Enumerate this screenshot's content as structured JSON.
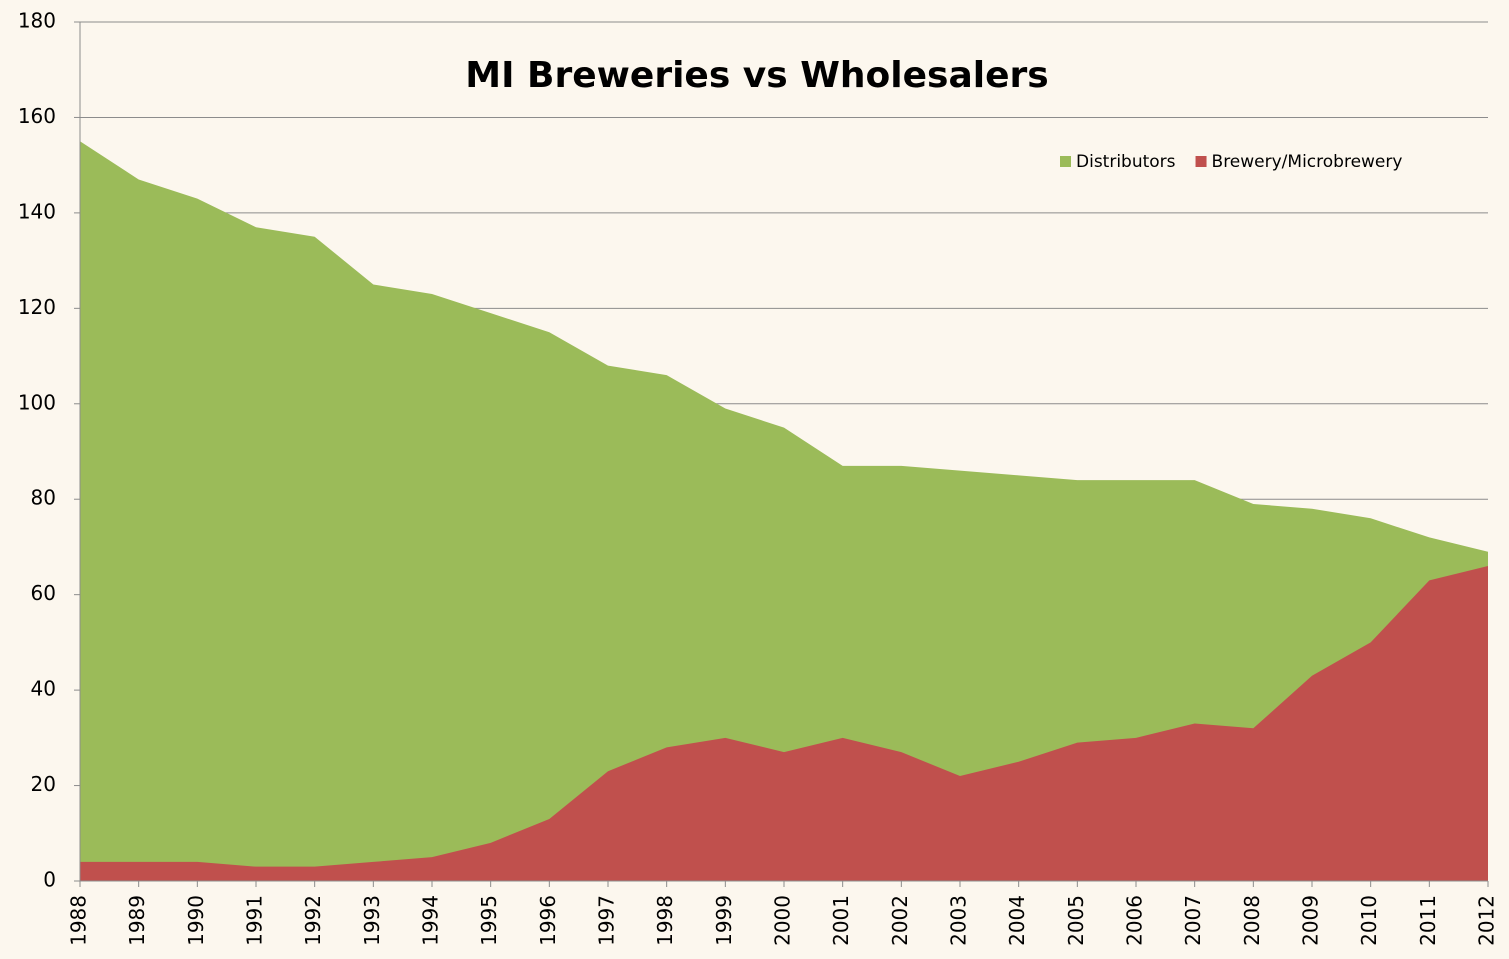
{
  "chart_data": {
    "type": "area",
    "title": "MI Breweries vs Wholesalers",
    "categories": [
      "1988",
      "1989",
      "1990",
      "1991",
      "1992",
      "1993",
      "1994",
      "1995",
      "1996",
      "1997",
      "1998",
      "1999",
      "2000",
      "2001",
      "2002",
      "2003",
      "2004",
      "2005",
      "2006",
      "2007",
      "2008",
      "2009",
      "2010",
      "2011",
      "2012"
    ],
    "series": [
      {
        "name": "Distributors",
        "color": "#9bbb59",
        "values": [
          155,
          147,
          143,
          137,
          135,
          125,
          123,
          119,
          115,
          108,
          106,
          99,
          95,
          87,
          87,
          86,
          85,
          84,
          84,
          84,
          79,
          78,
          76,
          72,
          69
        ]
      },
      {
        "name": "Brewery/Microbrewery",
        "color": "#c0504d",
        "values": [
          4,
          4,
          4,
          3,
          3,
          4,
          5,
          8,
          13,
          23,
          28,
          30,
          27,
          30,
          27,
          22,
          25,
          29,
          30,
          33,
          32,
          43,
          50,
          63,
          66
        ]
      }
    ],
    "ylim": [
      0,
      180
    ],
    "yticks": [
      0,
      20,
      40,
      60,
      80,
      100,
      120,
      140,
      160,
      180
    ],
    "grid": true,
    "legend": "top-right"
  }
}
